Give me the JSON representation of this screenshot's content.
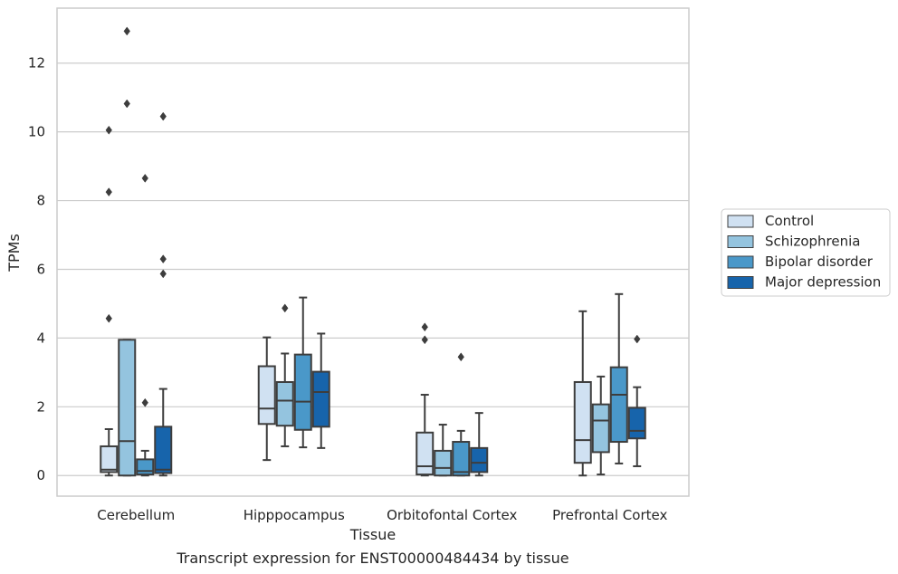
{
  "chart_data": {
    "type": "box",
    "title": "",
    "caption": "Transcript expression for ENST00000484434 by tissue",
    "xlabel": "Tissue",
    "ylabel": "TPMs",
    "ylim": [
      -0.6,
      13.6
    ],
    "yticks": [
      0,
      2,
      4,
      6,
      8,
      10,
      12
    ],
    "grid": "horizontal",
    "legend_placement": "right",
    "categories": [
      "Cerebellum",
      "Hipppocampus",
      "Orbitofontal Cortex",
      "Prefrontal Cortex"
    ],
    "series": [
      {
        "name": "Control",
        "color": "#d0e1f2",
        "boxes": [
          {
            "whislo": 0.0,
            "q1": 0.1,
            "med": 0.17,
            "q3": 0.85,
            "whishi": 1.35,
            "fliers": [
              4.57,
              8.25,
              10.05
            ]
          },
          {
            "whislo": 0.45,
            "q1": 1.5,
            "med": 1.95,
            "q3": 3.18,
            "whishi": 4.02,
            "fliers": []
          },
          {
            "whislo": 0.0,
            "q1": 0.03,
            "med": 0.27,
            "q3": 1.25,
            "whishi": 2.35,
            "fliers": [
              3.95,
              4.32
            ]
          },
          {
            "whislo": 0.0,
            "q1": 0.37,
            "med": 1.03,
            "q3": 2.72,
            "whishi": 4.78,
            "fliers": []
          }
        ]
      },
      {
        "name": "Schizophrenia",
        "color": "#94c4df",
        "boxes": [
          {
            "whislo": 0.0,
            "q1": 0.0,
            "med": 1.0,
            "q3": 3.95,
            "whishi": 3.95,
            "fliers": [
              10.82,
              12.93
            ]
          },
          {
            "whislo": 0.85,
            "q1": 1.45,
            "med": 2.18,
            "q3": 2.72,
            "whishi": 3.55,
            "fliers": [
              4.87
            ]
          },
          {
            "whislo": 0.0,
            "q1": 0.0,
            "med": 0.22,
            "q3": 0.72,
            "whishi": 1.48,
            "fliers": []
          },
          {
            "whislo": 0.03,
            "q1": 0.68,
            "med": 1.6,
            "q3": 2.07,
            "whishi": 2.88,
            "fliers": []
          }
        ]
      },
      {
        "name": "Bipolar disorder",
        "color": "#4a98c9",
        "boxes": [
          {
            "whislo": 0.0,
            "q1": 0.03,
            "med": 0.13,
            "q3": 0.47,
            "whishi": 0.72,
            "fliers": [
              2.12,
              8.65
            ]
          },
          {
            "whislo": 0.82,
            "q1": 1.33,
            "med": 2.15,
            "q3": 3.52,
            "whishi": 5.18,
            "fliers": []
          },
          {
            "whislo": 0.0,
            "q1": 0.0,
            "med": 0.1,
            "q3": 0.98,
            "whishi": 1.3,
            "fliers": [
              3.45
            ]
          },
          {
            "whislo": 0.35,
            "q1": 0.98,
            "med": 2.35,
            "q3": 3.15,
            "whishi": 5.28,
            "fliers": []
          }
        ]
      },
      {
        "name": "Major depression",
        "color": "#1764ab",
        "boxes": [
          {
            "whislo": 0.0,
            "q1": 0.07,
            "med": 0.17,
            "q3": 1.42,
            "whishi": 2.52,
            "fliers": [
              5.87,
              6.3,
              10.45
            ]
          },
          {
            "whislo": 0.8,
            "q1": 1.42,
            "med": 2.43,
            "q3": 3.02,
            "whishi": 4.13,
            "fliers": []
          },
          {
            "whislo": 0.0,
            "q1": 0.1,
            "med": 0.37,
            "q3": 0.8,
            "whishi": 1.82,
            "fliers": []
          },
          {
            "whislo": 0.27,
            "q1": 1.08,
            "med": 1.3,
            "q3": 1.97,
            "whishi": 2.57,
            "fliers": [
              3.97
            ]
          }
        ]
      }
    ]
  }
}
